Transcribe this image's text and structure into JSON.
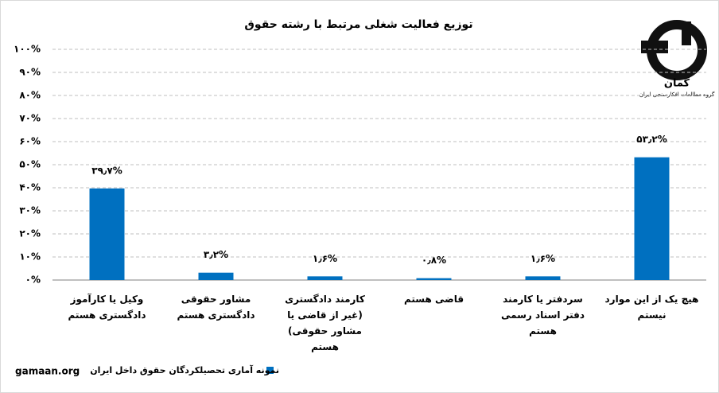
{
  "chart_data": {
    "type": "bar",
    "title": "توزیع فعالیت شغلی مرتبط با رشته حقوق",
    "categories": [
      "وکیل یا کارآموز دادگستری هستم",
      "مشاور حقوقی دادگستری هستم",
      "کارمند دادگستری (غیر از قاضی یا مشاور حقوقی) هستم",
      "قاضی هستم",
      "سردفتر یا کارمند دفتر اسناد رسمی هستم",
      "هیچ یک از این موارد نیستم"
    ],
    "series": [
      {
        "name": "نمونه آماری تحصیلکردگان حقوق داخل ایران",
        "color": "#0070c0",
        "values": [
          39.7,
          3.2,
          1.6,
          0.8,
          1.6,
          53.2
        ],
        "value_labels": [
          "۳۹٫۷%",
          "۳٫۲%",
          "۱٫۶%",
          "۰٫۸%",
          "۱٫۶%",
          "۵۳٫۲%"
        ]
      }
    ],
    "ylim": [
      0,
      100
    ],
    "yticks": [
      {
        "value": 0,
        "label": "۰%"
      },
      {
        "value": 10,
        "label": "۱۰%"
      },
      {
        "value": 20,
        "label": "۲۰%"
      },
      {
        "value": 30,
        "label": "۳۰%"
      },
      {
        "value": 40,
        "label": "۴۰%"
      },
      {
        "value": 50,
        "label": "۵۰%"
      },
      {
        "value": 60,
        "label": "۶۰%"
      },
      {
        "value": 70,
        "label": "۷۰%"
      },
      {
        "value": 80,
        "label": "۸۰%"
      },
      {
        "value": 90,
        "label": "۹۰%"
      },
      {
        "value": 100,
        "label": "۱۰۰%"
      }
    ],
    "grid": true,
    "legend": "bottom"
  },
  "logo": {
    "name": "گمان",
    "tagline": "گروه مطالعات افکارسنجی ایران"
  },
  "footer": "gamaan.org"
}
